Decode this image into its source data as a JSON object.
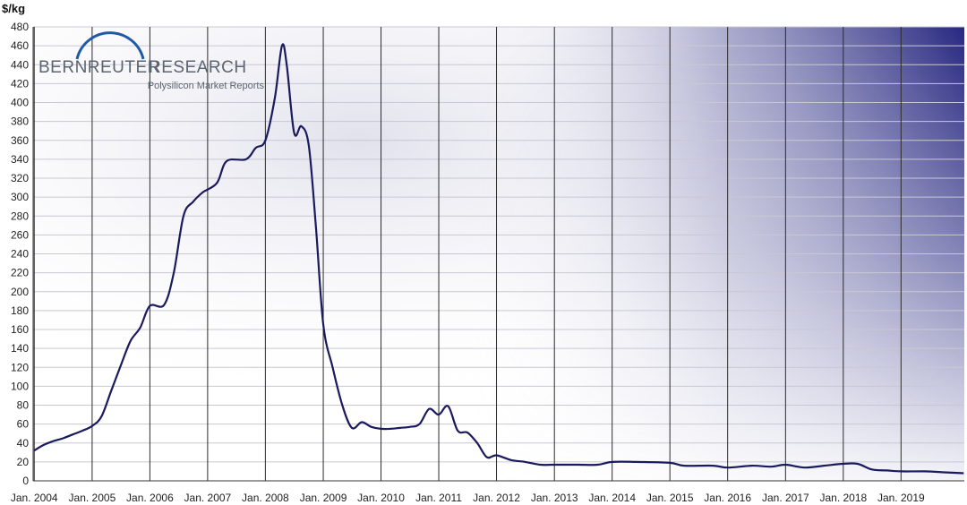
{
  "chart_data": {
    "type": "line",
    "ylabel": "$/kg",
    "ylim": [
      0,
      480
    ],
    "ytick_step": 20,
    "xlim": [
      "2003-12-25",
      "2020-02-05"
    ],
    "grid": true,
    "legend": "none",
    "xtick_labels": [
      "Jan. 2004",
      "Jan. 2005",
      "Jan. 2006",
      "Jan. 2007",
      "Jan. 2008",
      "Jan. 2009",
      "Jan. 2010",
      "Jan. 2011",
      "Jan. 2012",
      "Jan. 2013",
      "Jan. 2014",
      "Jan. 2015",
      "Jan. 2016",
      "Jan. 2017",
      "Jan. 2018",
      "Jan. 2019"
    ],
    "xtick_dates": [
      "2004-01-01",
      "2005-01-01",
      "2006-01-01",
      "2007-01-01",
      "2008-01-01",
      "2009-01-01",
      "2010-01-01",
      "2011-01-01",
      "2012-01-01",
      "2013-01-01",
      "2014-01-01",
      "2015-01-01",
      "2016-01-01",
      "2017-01-01",
      "2018-01-01",
      "2019-01-01"
    ],
    "series": [
      {
        "color": "#1a1a5e",
        "points": [
          [
            "2004-01-01",
            32
          ],
          [
            "2004-03-01",
            38
          ],
          [
            "2004-05-01",
            42
          ],
          [
            "2004-07-01",
            45
          ],
          [
            "2004-09-01",
            49
          ],
          [
            "2004-11-01",
            53
          ],
          [
            "2005-01-01",
            58
          ],
          [
            "2005-03-01",
            68
          ],
          [
            "2005-05-01",
            95
          ],
          [
            "2005-07-01",
            122
          ],
          [
            "2005-09-01",
            148
          ],
          [
            "2005-11-01",
            162
          ],
          [
            "2006-01-01",
            185
          ],
          [
            "2006-04-01",
            186
          ],
          [
            "2006-06-01",
            220
          ],
          [
            "2006-08-01",
            280
          ],
          [
            "2006-10-01",
            295
          ],
          [
            "2006-12-01",
            305
          ],
          [
            "2007-03-01",
            315
          ],
          [
            "2007-05-01",
            338
          ],
          [
            "2007-09-01",
            340
          ],
          [
            "2007-11-01",
            352
          ],
          [
            "2008-01-01",
            360
          ],
          [
            "2008-03-01",
            405
          ],
          [
            "2008-04-15",
            460
          ],
          [
            "2008-05-15",
            440
          ],
          [
            "2008-07-01",
            368
          ],
          [
            "2008-08-15",
            375
          ],
          [
            "2008-10-01",
            355
          ],
          [
            "2008-11-15",
            270
          ],
          [
            "2009-01-01",
            165
          ],
          [
            "2009-03-01",
            120
          ],
          [
            "2009-05-01",
            80
          ],
          [
            "2009-07-01",
            56
          ],
          [
            "2009-09-01",
            62
          ],
          [
            "2009-11-01",
            57
          ],
          [
            "2010-01-01",
            55
          ],
          [
            "2010-03-01",
            55
          ],
          [
            "2010-05-01",
            56
          ],
          [
            "2010-07-01",
            57
          ],
          [
            "2010-09-01",
            60
          ],
          [
            "2010-11-01",
            76
          ],
          [
            "2011-01-01",
            70
          ],
          [
            "2011-03-01",
            79
          ],
          [
            "2011-05-01",
            53
          ],
          [
            "2011-07-01",
            51
          ],
          [
            "2011-09-01",
            40
          ],
          [
            "2011-11-01",
            25
          ],
          [
            "2012-01-01",
            27
          ],
          [
            "2012-04-01",
            22
          ],
          [
            "2012-07-01",
            20
          ],
          [
            "2012-10-01",
            17
          ],
          [
            "2013-01-01",
            17
          ],
          [
            "2013-06-01",
            17
          ],
          [
            "2013-10-01",
            17
          ],
          [
            "2014-01-01",
            20
          ],
          [
            "2014-06-01",
            20
          ],
          [
            "2015-01-01",
            19
          ],
          [
            "2015-04-01",
            16
          ],
          [
            "2015-10-01",
            16
          ],
          [
            "2016-01-01",
            14
          ],
          [
            "2016-06-01",
            16
          ],
          [
            "2016-10-01",
            15
          ],
          [
            "2017-01-01",
            17
          ],
          [
            "2017-05-01",
            14
          ],
          [
            "2017-09-01",
            16
          ],
          [
            "2018-01-01",
            18
          ],
          [
            "2018-04-01",
            18
          ],
          [
            "2018-07-01",
            12
          ],
          [
            "2018-10-01",
            11
          ],
          [
            "2019-01-01",
            10
          ],
          [
            "2019-06-01",
            10
          ],
          [
            "2019-10-01",
            9
          ],
          [
            "2020-02-01",
            8
          ]
        ]
      }
    ]
  },
  "logo": {
    "name_part1": "BERNREUTER",
    "name_part2": "RESEARCH",
    "tagline": "Polysilicon Market Reports"
  }
}
